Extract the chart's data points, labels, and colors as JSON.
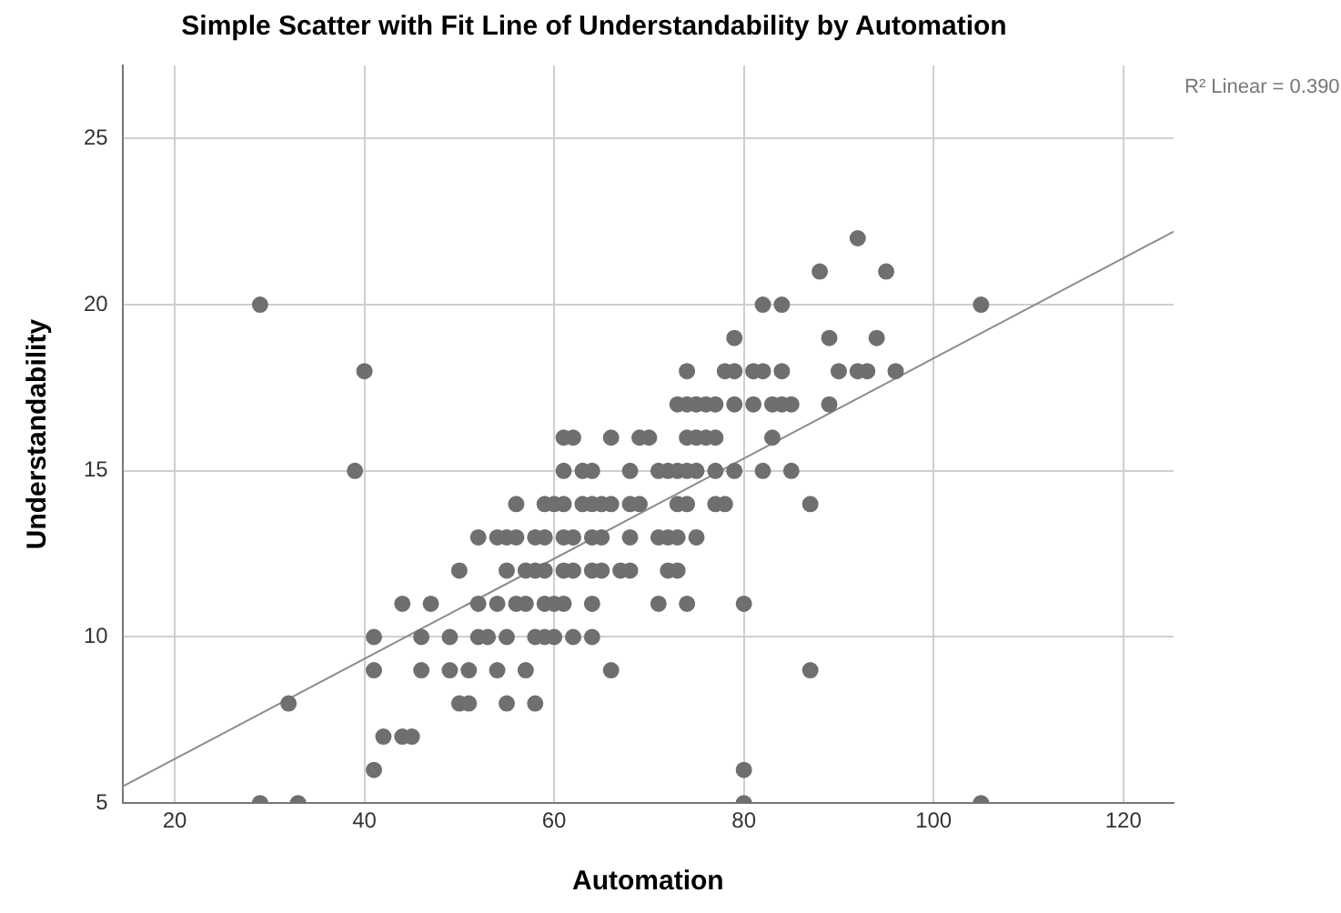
{
  "chart_data": {
    "type": "scatter",
    "title": "Simple Scatter with Fit Line of Understandability by Automation",
    "xlabel": "Automation",
    "ylabel": "Understandability",
    "annotations": [
      "R² Linear = 0.390"
    ],
    "xlim": [
      14.5,
      125.3
    ],
    "ylim": [
      5,
      27.2
    ],
    "xticks": [
      20,
      40,
      60,
      80,
      100,
      120
    ],
    "yticks": [
      5,
      10,
      15,
      20,
      25
    ],
    "grid": true,
    "legend": false,
    "marker": "circle",
    "series": [
      {
        "color": "#6f6f6f",
        "x": [
          29,
          40,
          39,
          61,
          62,
          66,
          69,
          70,
          74,
          75,
          76,
          77,
          83,
          61,
          63,
          64,
          68,
          71,
          72,
          73,
          74,
          75,
          77,
          79,
          82,
          85,
          56,
          59,
          60,
          61,
          63,
          64,
          65,
          66,
          68,
          69,
          73,
          74,
          77,
          78,
          87,
          52,
          54,
          55,
          56,
          58,
          59,
          61,
          62,
          64,
          65,
          68,
          71,
          72,
          73,
          75,
          50,
          55,
          57,
          58,
          59,
          61,
          62,
          64,
          65,
          67,
          68,
          72,
          73,
          44,
          47,
          52,
          54,
          56,
          57,
          59,
          60,
          61,
          64,
          71,
          74,
          80,
          41,
          46,
          49,
          52,
          53,
          55,
          58,
          59,
          60,
          62,
          64,
          41,
          46,
          49,
          51,
          54,
          57,
          66,
          87,
          50,
          51,
          55,
          58,
          32,
          42,
          44,
          45,
          41,
          80,
          29,
          33,
          80,
          105,
          92,
          88,
          95,
          82,
          84,
          105,
          79,
          89,
          94,
          74,
          78,
          79,
          81,
          82,
          84,
          90,
          92,
          93,
          96,
          73,
          74,
          75,
          76,
          77,
          79,
          81,
          83,
          84,
          85,
          89
        ],
        "values": [
          20,
          18,
          15,
          16,
          16,
          16,
          16,
          16,
          16,
          16,
          16,
          16,
          16,
          15,
          15,
          15,
          15,
          15,
          15,
          15,
          15,
          15,
          15,
          15,
          15,
          15,
          14,
          14,
          14,
          14,
          14,
          14,
          14,
          14,
          14,
          14,
          14,
          14,
          14,
          14,
          14,
          13,
          13,
          13,
          13,
          13,
          13,
          13,
          13,
          13,
          13,
          13,
          13,
          13,
          13,
          13,
          12,
          12,
          12,
          12,
          12,
          12,
          12,
          12,
          12,
          12,
          12,
          12,
          12,
          11,
          11,
          11,
          11,
          11,
          11,
          11,
          11,
          11,
          11,
          11,
          11,
          11,
          10,
          10,
          10,
          10,
          10,
          10,
          10,
          10,
          10,
          10,
          10,
          9,
          9,
          9,
          9,
          9,
          9,
          9,
          9,
          8,
          8,
          8,
          8,
          8,
          7,
          7,
          7,
          6,
          6,
          5,
          5,
          5,
          5,
          22,
          21,
          21,
          20,
          20,
          20,
          19,
          19,
          19,
          18,
          18,
          18,
          18,
          18,
          18,
          18,
          18,
          18,
          18,
          17,
          17,
          17,
          17,
          17,
          17,
          17,
          17,
          17,
          17,
          17
        ]
      },
      {
        "type": "line",
        "color": "#8c8c8c",
        "marker": "none",
        "x": [
          14.5,
          125.3
        ],
        "values": [
          5.5,
          22.2
        ]
      }
    ]
  }
}
